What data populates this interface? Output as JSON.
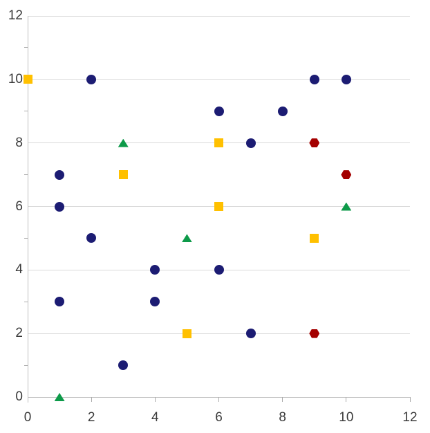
{
  "chart_data": {
    "type": "scatter",
    "title": "",
    "xlabel": "",
    "ylabel": "",
    "xlim": [
      0,
      12
    ],
    "ylim": [
      0,
      12
    ],
    "x_tick_labels": [
      0,
      2,
      4,
      6,
      8,
      10,
      12
    ],
    "y_tick_labels": [
      0,
      2,
      4,
      6,
      8,
      10,
      12
    ],
    "y_gridlines": [
      2,
      4,
      6,
      8,
      10,
      12
    ],
    "y_minor_ticks": [
      1,
      3,
      5,
      7,
      9,
      11
    ],
    "x_axis_tick_marks": [
      2,
      4,
      6,
      8,
      10,
      12
    ],
    "grid": "horizontal-only",
    "legend": "none",
    "series": [
      {
        "name": "navy-circles",
        "marker": "circle",
        "color": "#1C1C73",
        "points": [
          [
            2,
            10
          ],
          [
            9,
            10
          ],
          [
            10,
            10
          ],
          [
            6,
            9
          ],
          [
            8,
            9
          ],
          [
            7,
            8
          ],
          [
            1,
            7
          ],
          [
            1,
            6
          ],
          [
            2,
            5
          ],
          [
            4,
            4
          ],
          [
            6,
            4
          ],
          [
            1,
            3
          ],
          [
            4,
            3
          ],
          [
            7,
            2
          ],
          [
            3,
            1
          ]
        ]
      },
      {
        "name": "gold-squares",
        "marker": "square",
        "color": "#FFC000",
        "points": [
          [
            0,
            10
          ],
          [
            6,
            8
          ],
          [
            3,
            7
          ],
          [
            6,
            6
          ],
          [
            9,
            5
          ],
          [
            5,
            2
          ]
        ]
      },
      {
        "name": "green-triangles",
        "marker": "triangle",
        "color": "#0D9A49",
        "points": [
          [
            3,
            8
          ],
          [
            10,
            6
          ],
          [
            5,
            5
          ],
          [
            1,
            0
          ]
        ]
      },
      {
        "name": "darkred-hexagons",
        "marker": "hexagon",
        "color": "#A40000",
        "points": [
          [
            9,
            8
          ],
          [
            10,
            7
          ],
          [
            9,
            2
          ]
        ]
      }
    ],
    "style_colors": {
      "gridline": "#D9D9D9",
      "axis_line": "#BFBFBF",
      "tick_mark": "#ABABAB",
      "tick_label": "#3A3A3A",
      "background": "#FFFFFF"
    }
  }
}
